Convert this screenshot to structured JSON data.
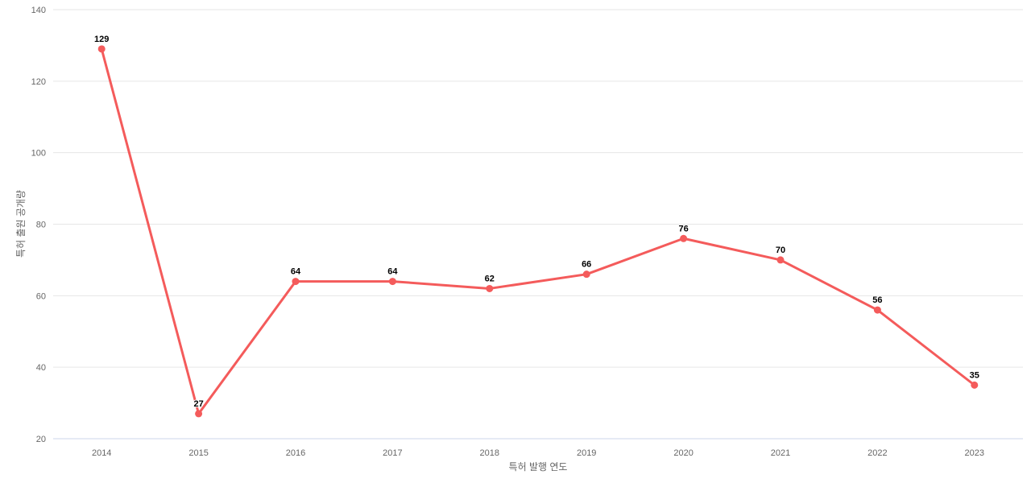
{
  "chart_data": {
    "type": "line",
    "title": "",
    "categories": [
      "2014",
      "2015",
      "2016",
      "2017",
      "2018",
      "2019",
      "2020",
      "2021",
      "2022",
      "2023"
    ],
    "values": [
      129,
      27,
      64,
      64,
      62,
      66,
      76,
      70,
      56,
      35
    ],
    "xlabel": "특허 발행 연도",
    "ylabel": "특허 출원 공개량",
    "ylim": [
      20,
      140
    ],
    "yticks": [
      20,
      40,
      60,
      80,
      100,
      120,
      140
    ],
    "grid": "horizontal",
    "legend": "none",
    "marker": "circle",
    "data_labels_visible": true,
    "colors": {
      "series": "#f45b5b",
      "grid_line": "#e6e6e6",
      "axis_line": "#ccd6eb",
      "tick_label": "#666666",
      "axis_title": "#666666",
      "data_label": "#000000",
      "background": "#ffffff"
    }
  }
}
